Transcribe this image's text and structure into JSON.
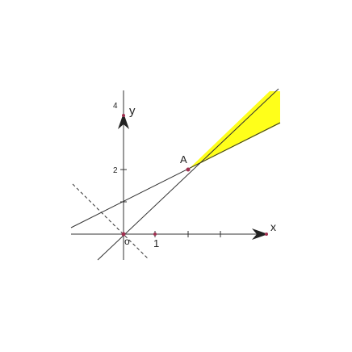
{
  "axes": {
    "x": "x",
    "y": "y"
  },
  "origin": "o",
  "x_ticks": [
    "1"
  ],
  "y_ticks": [
    "2",
    "4"
  ],
  "point": "A"
}
